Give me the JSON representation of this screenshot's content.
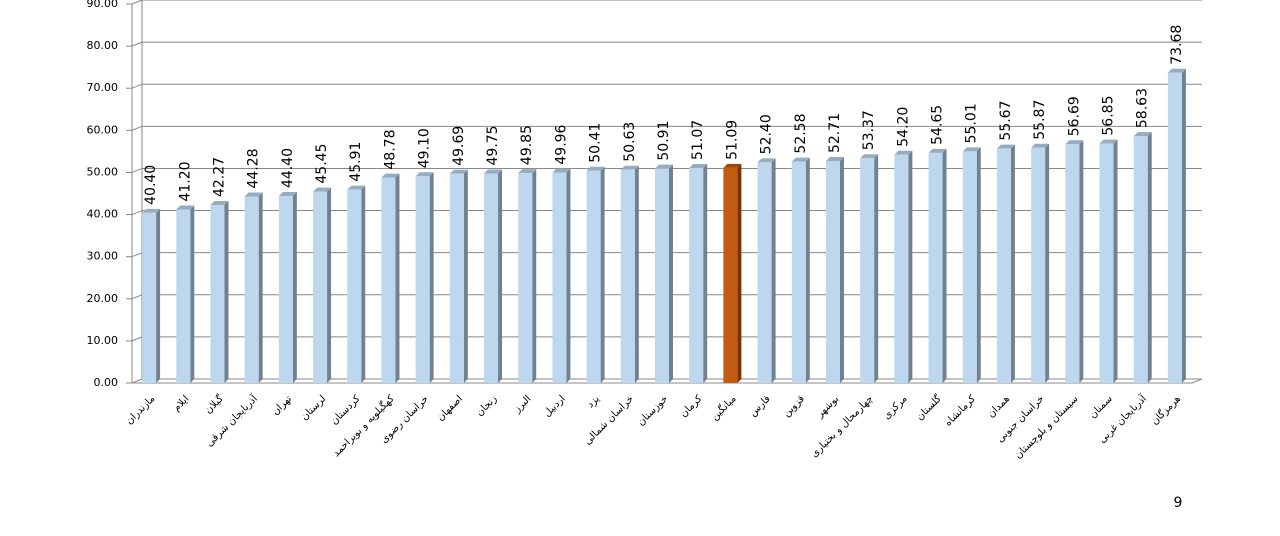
{
  "chart_data": {
    "type": "bar",
    "categories": [
      "مازندران",
      "ایلام",
      "گیلان",
      "آذربایجان شرقی",
      "تهران",
      "لرستان",
      "کردستان",
      "کهگیلویه و بویراحمد",
      "خراسان رضوی",
      "اصفهان",
      "زنجان",
      "البرز",
      "اردبیل",
      "یزد",
      "خراسان شمالی",
      "خوزستان",
      "کرمان",
      "میانگین",
      "فارس",
      "قزوین",
      "بوشهر",
      "چهارمحال و بختیاری",
      "مرکزی",
      "گلستان",
      "کرمانشاه",
      "همدان",
      "خراسان جنوبی",
      "سیستان و بلوچستان",
      "سمنان",
      "آذربایجان غربی",
      "هرمزگان"
    ],
    "values": [
      40.4,
      41.2,
      42.27,
      44.28,
      44.4,
      45.45,
      45.91,
      48.78,
      49.1,
      49.69,
      49.75,
      49.85,
      49.96,
      50.41,
      50.63,
      50.91,
      51.07,
      51.09,
      52.4,
      52.58,
      52.71,
      53.37,
      54.2,
      54.65,
      55.01,
      55.67,
      55.87,
      56.69,
      56.85,
      58.63,
      73.68
    ],
    "value_labels": [
      "40.40",
      "41.20",
      "42.27",
      "44.28",
      "44.40",
      "45.45",
      "45.91",
      "48.78",
      "49.10",
      "49.69",
      "49.75",
      "49.85",
      "49.96",
      "50.41",
      "50.63",
      "50.91",
      "51.07",
      "51.09",
      "52.40",
      "52.58",
      "52.71",
      "53.37",
      "54.20",
      "54.65",
      "55.01",
      "55.67",
      "55.87",
      "56.69",
      "56.85",
      "58.63",
      "73.68"
    ],
    "colors": [
      "#bdd7ee",
      "#bdd7ee",
      "#bdd7ee",
      "#bdd7ee",
      "#bdd7ee",
      "#bdd7ee",
      "#bdd7ee",
      "#bdd7ee",
      "#bdd7ee",
      "#bdd7ee",
      "#bdd7ee",
      "#bdd7ee",
      "#bdd7ee",
      "#bdd7ee",
      "#bdd7ee",
      "#bdd7ee",
      "#bdd7ee",
      "#c55a11",
      "#bdd7ee",
      "#bdd7ee",
      "#bdd7ee",
      "#bdd7ee",
      "#bdd7ee",
      "#bdd7ee",
      "#bdd7ee",
      "#bdd7ee",
      "#bdd7ee",
      "#bdd7ee",
      "#bdd7ee",
      "#bdd7ee",
      "#bdd7ee"
    ],
    "ylim": [
      0,
      90
    ],
    "yticks": [
      {
        "value": 0,
        "label": "0.00"
      },
      {
        "value": 10,
        "label": "10.00"
      },
      {
        "value": 20,
        "label": "20.00"
      },
      {
        "value": 30,
        "label": "30.00"
      },
      {
        "value": 40,
        "label": "40.00"
      },
      {
        "value": 50,
        "label": "50.00"
      },
      {
        "value": 60,
        "label": "60.00"
      },
      {
        "value": 70,
        "label": "70.00"
      },
      {
        "value": 80,
        "label": "80.00"
      },
      {
        "value": 90,
        "label": "90.00"
      }
    ],
    "grid": true
  },
  "page_number": "9"
}
